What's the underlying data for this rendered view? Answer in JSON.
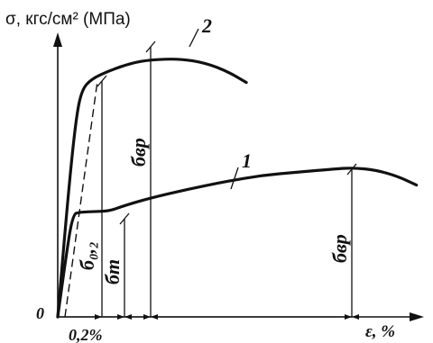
{
  "chart_data": {
    "type": "line",
    "ylabel": "σ, кгс/см² (МПа)",
    "xlabel": "ε, %",
    "origin_label": "0",
    "x_tick_label": "0,2%",
    "series": [
      {
        "name": "1",
        "points": [
          [
            0,
            0
          ],
          [
            2,
            50
          ],
          [
            4,
            95
          ],
          [
            6,
            97
          ],
          [
            10,
            97.5
          ],
          [
            14,
            98
          ],
          [
            18,
            103
          ],
          [
            25,
            110
          ],
          [
            35,
            118
          ],
          [
            45,
            125
          ],
          [
            55,
            131
          ],
          [
            65,
            134
          ],
          [
            75,
            137
          ],
          [
            80,
            138
          ],
          [
            86,
            136
          ],
          [
            92,
            130
          ],
          [
            97,
            122
          ]
        ]
      },
      {
        "name": "2",
        "points": [
          [
            0,
            0
          ],
          [
            3,
            120
          ],
          [
            5,
            185
          ],
          [
            6.5,
            210
          ],
          [
            9,
            220
          ],
          [
            14,
            228
          ],
          [
            20,
            235
          ],
          [
            25,
            238
          ],
          [
            33,
            239
          ],
          [
            40,
            235
          ],
          [
            46,
            227
          ],
          [
            51,
            217
          ]
        ]
      }
    ],
    "annotations": [
      {
        "label": "б₀,₂",
        "x": 12
      },
      {
        "label": "бт",
        "x": 18
      },
      {
        "label": "бвр",
        "x": 25
      },
      {
        "label": "бвр",
        "x": 80
      }
    ]
  }
}
